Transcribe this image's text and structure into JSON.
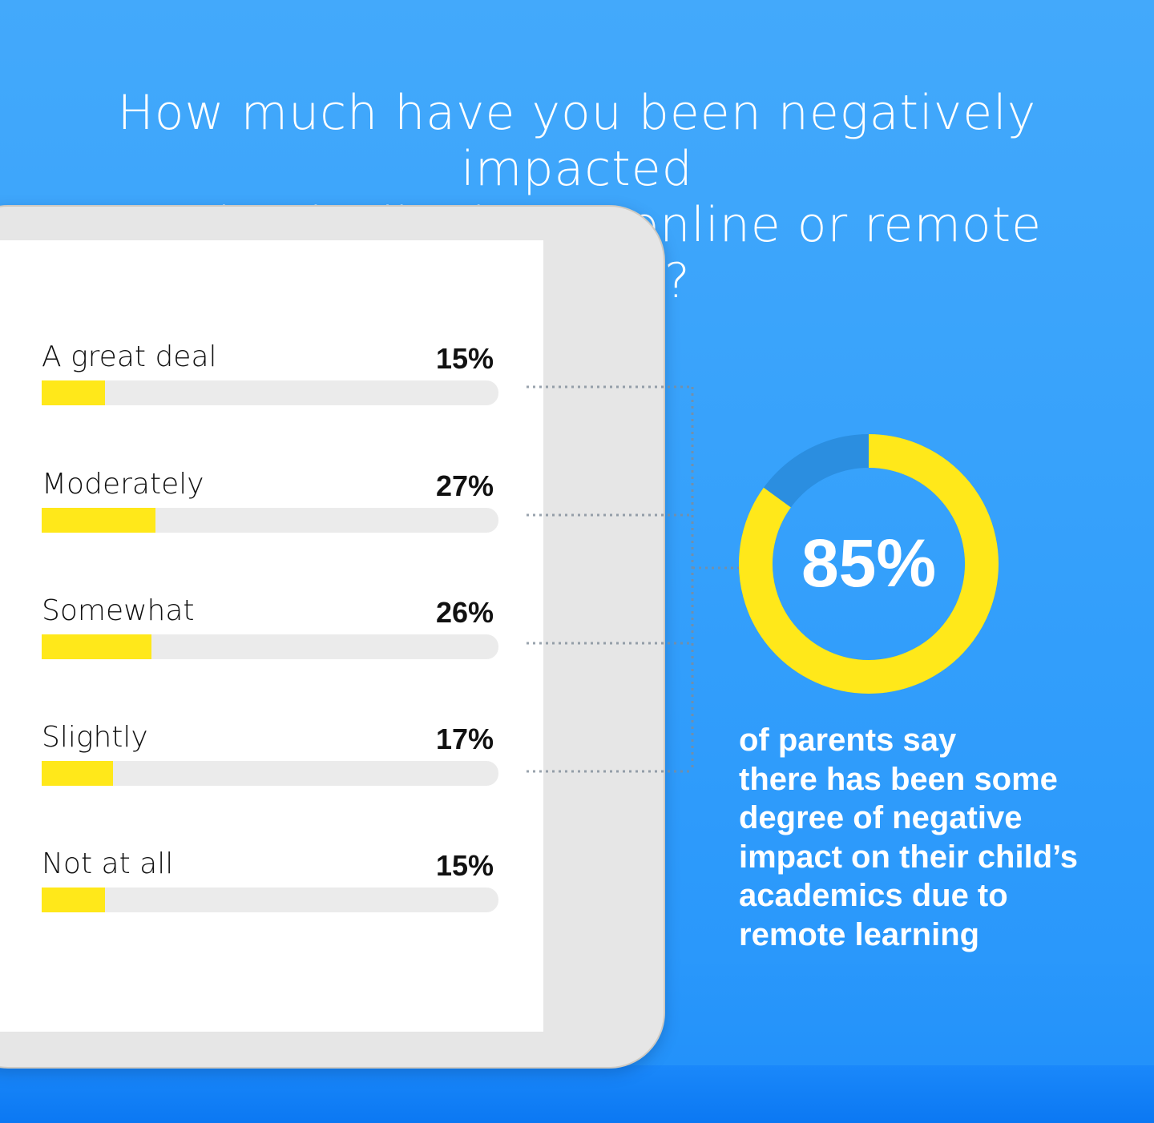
{
  "title_lines": [
    "How much have you been negatively impacted",
    "academically due to online or remote learning?"
  ],
  "colors": {
    "accent": "#ffe81a",
    "track": "#ebebeb",
    "background": "#36a1fb",
    "donut_remainder": "#2b8ee0"
  },
  "chart_data": [
    {
      "type": "bar",
      "orientation": "horizontal",
      "title": "How much have you been negatively impacted academically due to online or remote learning?",
      "categories": [
        "A great deal",
        "Moderately",
        "Somewhat",
        "Slightly",
        "Not at all"
      ],
      "values": [
        15,
        27,
        26,
        17,
        15
      ],
      "value_labels": [
        "15%",
        "27%",
        "26%",
        "17%",
        "15%"
      ],
      "unit": "%"
    },
    {
      "type": "pie",
      "variant": "donut",
      "values": [
        85,
        15
      ],
      "center_label": "85%",
      "caption": [
        "of parents say",
        "there has been some",
        "degree of negative",
        "impact on their child’s",
        "academics due to",
        "remote learning"
      ]
    }
  ]
}
